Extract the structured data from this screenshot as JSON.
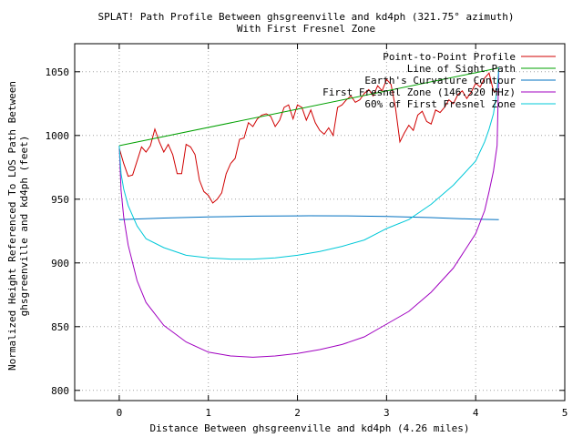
{
  "chart_data": {
    "type": "line",
    "title": "SPLAT! Path Profile Between ghsgreenville and kd4ph (321.75° azimuth)",
    "subtitle": "With First Fresnel Zone",
    "xlabel": "Distance Between ghsgreenville and kd4ph (4.26 miles)",
    "ylabel_lines": [
      "Normalized Height Referenced To LOS Path Between",
      "ghsgreenville and kd4ph (feet)"
    ],
    "xlim": [
      -0.5,
      5
    ],
    "ylim": [
      792,
      1072
    ],
    "x_ticks": [
      0,
      1,
      2,
      3,
      4,
      5
    ],
    "y_ticks": [
      800,
      850,
      900,
      950,
      1000,
      1050
    ],
    "grid": true,
    "legend_position": "top-right",
    "series": [
      {
        "name": "Point-to-Point Profile",
        "color": "#d00000",
        "x": [
          0,
          0.05,
          0.1,
          0.15,
          0.2,
          0.25,
          0.3,
          0.35,
          0.4,
          0.45,
          0.5,
          0.55,
          0.6,
          0.65,
          0.7,
          0.75,
          0.8,
          0.85,
          0.9,
          0.95,
          1.0,
          1.05,
          1.1,
          1.15,
          1.2,
          1.25,
          1.3,
          1.35,
          1.4,
          1.45,
          1.5,
          1.55,
          1.6,
          1.65,
          1.7,
          1.75,
          1.8,
          1.85,
          1.9,
          1.95,
          2.0,
          2.05,
          2.1,
          2.15,
          2.2,
          2.25,
          2.3,
          2.35,
          2.4,
          2.45,
          2.5,
          2.55,
          2.6,
          2.65,
          2.7,
          2.75,
          2.8,
          2.85,
          2.9,
          2.95,
          3.0,
          3.05,
          3.1,
          3.15,
          3.2,
          3.25,
          3.3,
          3.35,
          3.4,
          3.45,
          3.5,
          3.55,
          3.6,
          3.65,
          3.7,
          3.75,
          3.8,
          3.85,
          3.9,
          3.95,
          4.0,
          4.05,
          4.1,
          4.15,
          4.2,
          4.26
        ],
        "y": [
          990,
          978,
          968,
          969,
          980,
          991,
          987,
          992,
          1005,
          995,
          987,
          993,
          985,
          970,
          970,
          993,
          991,
          985,
          965,
          956,
          953,
          947,
          950,
          955,
          970,
          978,
          982,
          997,
          998,
          1010,
          1007,
          1013,
          1016,
          1017,
          1015,
          1007,
          1012,
          1022,
          1024,
          1013,
          1024,
          1022,
          1012,
          1020,
          1010,
          1004,
          1001,
          1006,
          1000,
          1022,
          1024,
          1028,
          1031,
          1026,
          1028,
          1033,
          1036,
          1031,
          1039,
          1035,
          1044,
          1040,
          1022,
          995,
          1002,
          1008,
          1004,
          1016,
          1019,
          1011,
          1009,
          1020,
          1018,
          1022,
          1028,
          1025,
          1032,
          1035,
          1029,
          1034,
          1041,
          1038,
          1045,
          1049,
          1035,
          1034
        ]
      },
      {
        "name": "Line of Sight Path",
        "color": "#00a000",
        "x": [
          0,
          4.26
        ],
        "y": [
          992,
          1053
        ]
      },
      {
        "name": "Earth's Curvature Contour",
        "color": "#0070c0",
        "x": [
          0,
          0.5,
          1.0,
          1.5,
          2.0,
          2.13,
          2.5,
          3.0,
          3.5,
          4.0,
          4.26
        ],
        "y": [
          934,
          935.2,
          936.1,
          936.7,
          936.9,
          937,
          936.9,
          936.5,
          935.6,
          934.3,
          934
        ]
      },
      {
        "name": "First Fresnel Zone (146.520 MHz)",
        "color": "#a000c0",
        "x": [
          0,
          0.02,
          0.05,
          0.1,
          0.2,
          0.3,
          0.5,
          0.75,
          1.0,
          1.25,
          1.5,
          1.75,
          2.0,
          2.25,
          2.5,
          2.75,
          3.0,
          3.25,
          3.5,
          3.75,
          4.0,
          4.1,
          4.15,
          4.2,
          4.24,
          4.26
        ],
        "y": [
          992,
          957,
          936,
          914,
          886,
          869,
          851,
          838,
          830,
          827,
          826,
          827,
          829,
          832,
          836,
          842,
          852,
          862,
          877,
          896,
          923,
          941,
          956,
          972,
          992,
          1053
        ]
      },
      {
        "name": "60% of First Fresnel Zone",
        "color": "#00c8d8",
        "x": [
          0,
          0.02,
          0.05,
          0.1,
          0.2,
          0.3,
          0.5,
          0.75,
          1.0,
          1.25,
          1.5,
          1.75,
          2.0,
          2.25,
          2.5,
          2.75,
          3.0,
          3.25,
          3.5,
          3.75,
          4.0,
          4.1,
          4.15,
          4.2,
          4.24,
          4.26
        ],
        "y": [
          992,
          970,
          958,
          945,
          929,
          919,
          912,
          906,
          904,
          903,
          903,
          904,
          906,
          909,
          913,
          918,
          927,
          934,
          946,
          961,
          980,
          995,
          1005,
          1017,
          1036,
          1053
        ]
      }
    ]
  }
}
